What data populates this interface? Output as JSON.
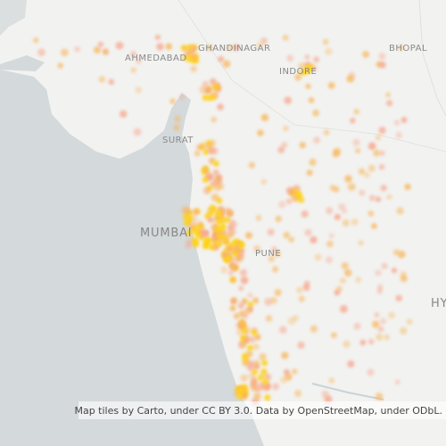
{
  "labels": [
    {
      "text": "GHANDINAGAR"
    },
    {
      "text": "AHMEDABAD"
    },
    {
      "text": "BHOPAL"
    },
    {
      "text": "INDORE"
    },
    {
      "text": "SURAT"
    },
    {
      "text": "MUMBAI"
    },
    {
      "text": "PUNE"
    },
    {
      "text": "HY"
    }
  ],
  "attribution": "Map tiles by Carto, under CC BY 3.0. Data by OpenStreetMap, under ODbL."
}
